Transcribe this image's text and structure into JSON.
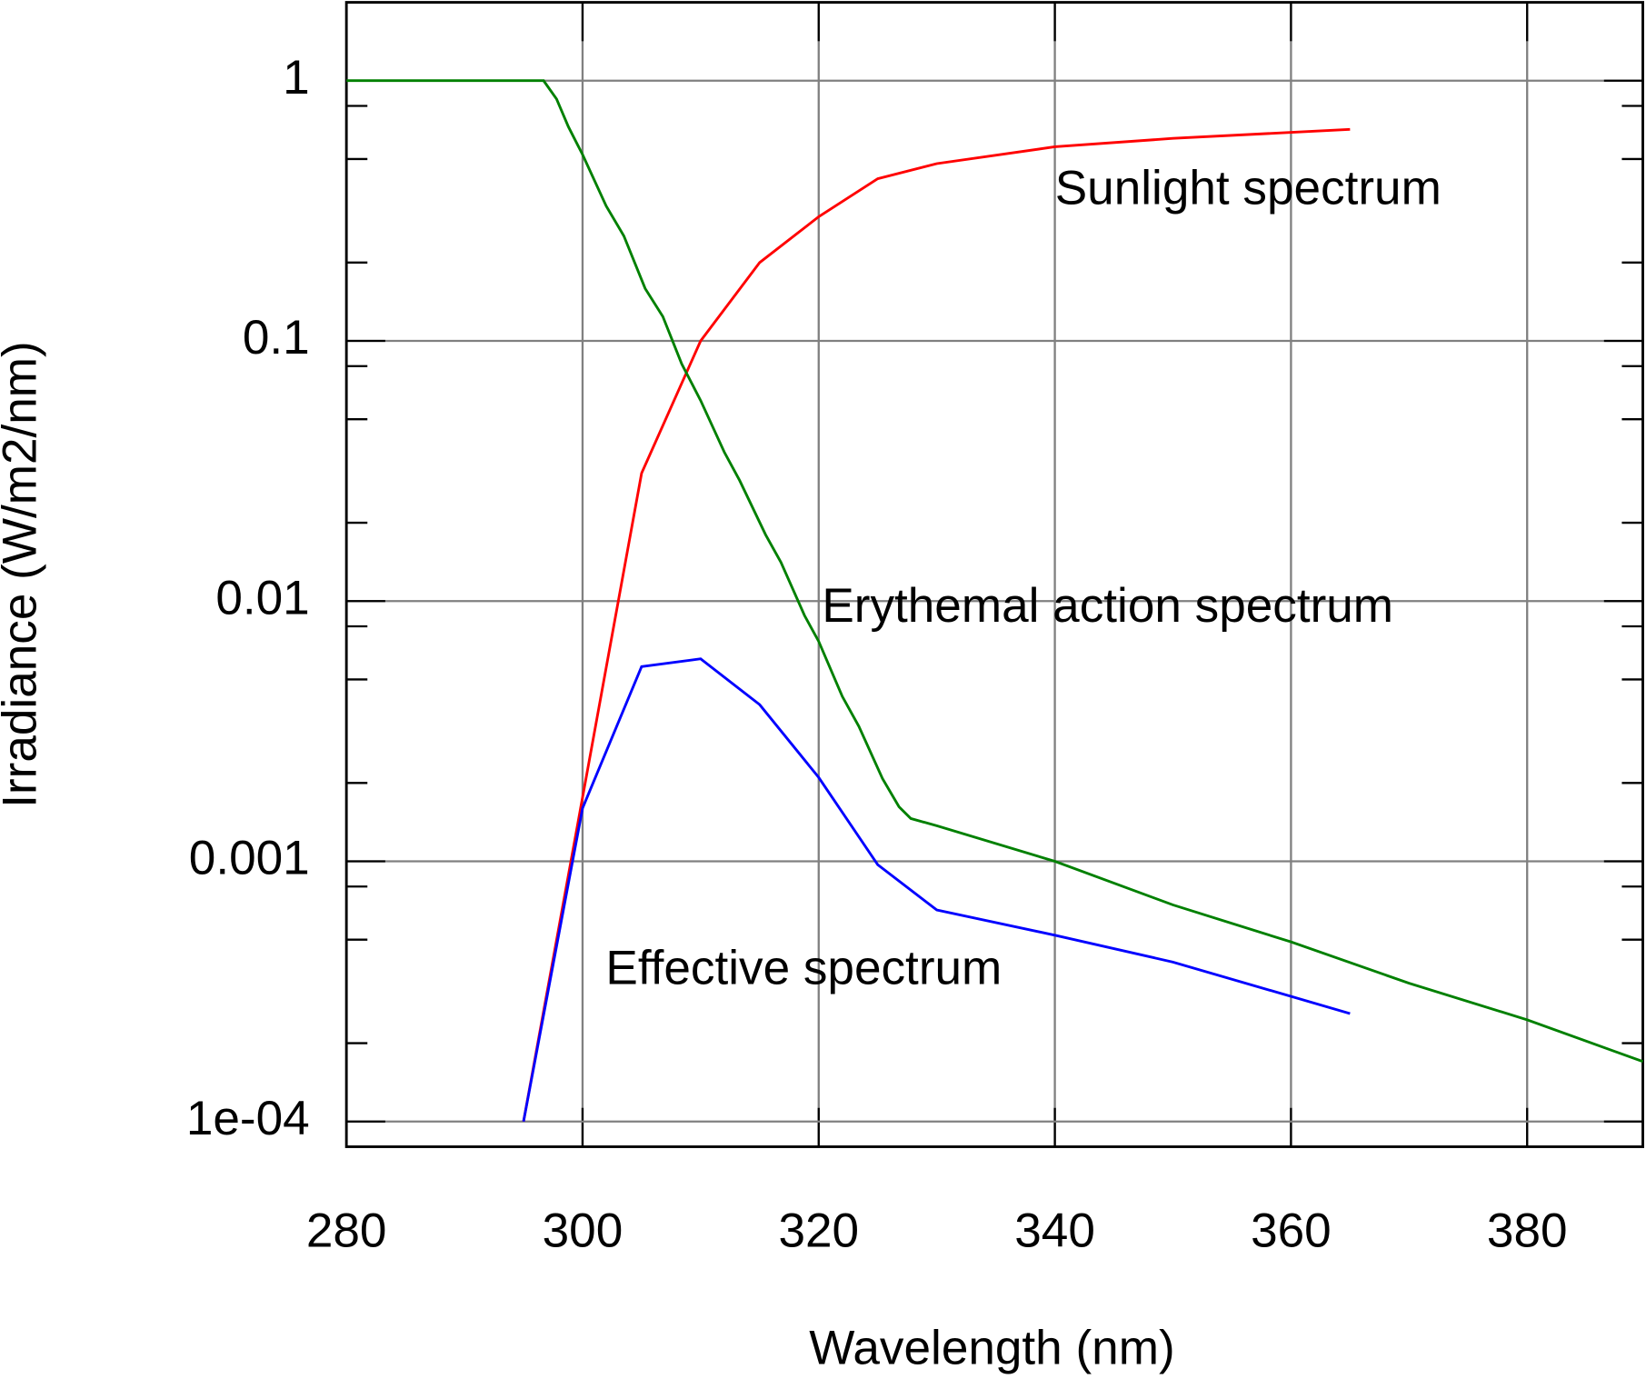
{
  "chart_data": {
    "type": "line",
    "x_label": "Wavelength (nm)",
    "y_label": "Irradiance (W/m2/nm)",
    "log_y": true,
    "grid": true,
    "xlim": [
      280,
      389.8
    ],
    "ylim": [
      8e-05,
      2
    ],
    "xticks": [
      280,
      300,
      320,
      340,
      360,
      380
    ],
    "yticks": [
      1,
      0.1,
      0.01,
      0.001,
      {
        "value": 0.0001,
        "label": "1e-04"
      }
    ],
    "yminorticks": [
      0.8,
      0.5,
      0.2,
      0.08,
      0.05,
      0.02,
      0.008,
      0.005,
      0.002,
      0.0008,
      0.0005,
      0.0002
    ],
    "series": [
      {
        "name": "Sunlight spectrum",
        "color": "#ff0000",
        "x": [
          295,
          305,
          310,
          315,
          320,
          325,
          330,
          340,
          350,
          365
        ],
        "values": [
          0.0001,
          0.031,
          0.1,
          0.2,
          0.3,
          0.42,
          0.48,
          0.557,
          0.6,
          0.65
        ]
      },
      {
        "name": "Erythemal action spectrum",
        "color": "#008000",
        "x": [
          280,
          296.7,
          297.8,
          298.8,
          300,
          302,
          303.5,
          305.3,
          306.8,
          308.4,
          310,
          312,
          313.3,
          315.5,
          316.8,
          318.8,
          320,
          322,
          323.4,
          325.4,
          326.8,
          327.8,
          330,
          340,
          350,
          360,
          370,
          380,
          389.8
        ],
        "values": [
          1,
          1,
          0.85,
          0.665,
          0.52,
          0.33,
          0.253,
          0.159,
          0.124,
          0.0815,
          0.059,
          0.0374,
          0.0291,
          0.018,
          0.0141,
          0.0088,
          0.007,
          0.0043,
          0.0033,
          0.00208,
          0.00162,
          0.00146,
          0.00137,
          0.001,
          0.00068,
          0.00049,
          0.00034,
          0.000246,
          0.00017
        ]
      },
      {
        "name": "Effective spectrum",
        "color": "#0000ff",
        "x": [
          295,
          300,
          305,
          310,
          315,
          320,
          325,
          330,
          340,
          350,
          365
        ],
        "values": [
          0.0001,
          0.0016,
          0.0056,
          0.006,
          0.004,
          0.0021,
          0.00097,
          0.00065,
          0.00052,
          0.00041,
          0.00026
        ]
      }
    ]
  }
}
